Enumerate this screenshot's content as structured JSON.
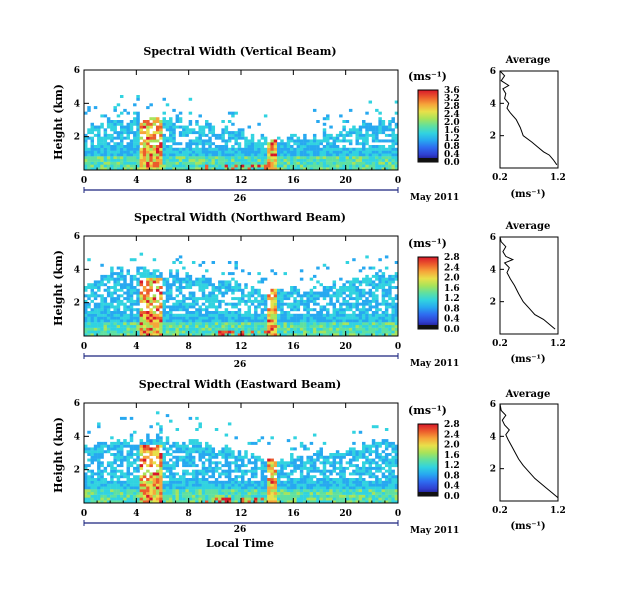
{
  "common": {
    "height_label": "Height (km)",
    "unit_label": "(ms⁻¹)",
    "profile_unit_label": "(ms⁻¹)",
    "profile_title": "Average",
    "date_label": "May 2011",
    "day_label": "26",
    "x_ticks": [
      "0",
      "4",
      "8",
      "12",
      "16",
      "20",
      "0"
    ],
    "y_ticks": [
      "6",
      "4",
      "2"
    ],
    "x_axis_label": "Local Time",
    "colors": {
      "axis": "#000000",
      "day_bar": "#1a237e",
      "colormap": [
        "#1a0a6e",
        "#2f3fd0",
        "#2e6bf0",
        "#27a8f0",
        "#31d3e0",
        "#5fe0a0",
        "#a7e35a",
        "#e8e04a",
        "#f6a53a",
        "#ec5b2c",
        "#d8182a"
      ]
    }
  },
  "chart_data": [
    {
      "type": "heatmap",
      "title": "Spectral Width (Vertical Beam)",
      "xlabel": "",
      "ylabel": "Height (km)",
      "x_range_hours": [
        0,
        24
      ],
      "ylim_km": [
        0,
        6
      ],
      "colorbar": {
        "ticks": [
          "3.6",
          "3.2",
          "2.8",
          "2.4",
          "2.0",
          "1.6",
          "1.2",
          "0.8",
          "0.4",
          "0.0"
        ],
        "min": 0.0,
        "max": 3.6
      },
      "profile": {
        "title": "Average",
        "xlabel": "(ms⁻¹)",
        "x_ticks": [
          "0.2",
          "1.2"
        ],
        "xlim": [
          0.2,
          1.2
        ],
        "y_ticks": [
          "6",
          "4",
          "2"
        ],
        "ylim_km": [
          0,
          6
        ],
        "points": [
          [
            1.18,
            0.2
          ],
          [
            1.12,
            0.5
          ],
          [
            1.05,
            0.8
          ],
          [
            0.95,
            1.0
          ],
          [
            0.85,
            1.3
          ],
          [
            0.75,
            1.6
          ],
          [
            0.6,
            2.0
          ],
          [
            0.55,
            2.5
          ],
          [
            0.48,
            3.0
          ],
          [
            0.38,
            3.4
          ],
          [
            0.32,
            3.7
          ],
          [
            0.35,
            4.0
          ],
          [
            0.28,
            4.3
          ],
          [
            0.3,
            4.6
          ],
          [
            0.25,
            4.9
          ],
          [
            0.35,
            5.1
          ],
          [
            0.22,
            5.4
          ],
          [
            0.28,
            5.7
          ],
          [
            0.2,
            6.0
          ]
        ]
      }
    },
    {
      "type": "heatmap",
      "title": "Spectral Width (Northward Beam)",
      "xlabel": "",
      "ylabel": "Height (km)",
      "x_range_hours": [
        0,
        24
      ],
      "ylim_km": [
        0,
        6
      ],
      "colorbar": {
        "ticks": [
          "2.8",
          "2.4",
          "2.0",
          "1.6",
          "1.2",
          "0.8",
          "0.4",
          "0.0"
        ],
        "min": 0.0,
        "max": 2.8
      },
      "profile": {
        "title": "Average",
        "xlabel": "(ms⁻¹)",
        "x_ticks": [
          "0.2",
          "1.2"
        ],
        "xlim": [
          0.2,
          1.2
        ],
        "y_ticks": [
          "6",
          "4",
          "2"
        ],
        "ylim_km": [
          0,
          6
        ],
        "points": [
          [
            1.15,
            0.3
          ],
          [
            1.05,
            0.6
          ],
          [
            0.95,
            0.9
          ],
          [
            0.8,
            1.2
          ],
          [
            0.7,
            1.6
          ],
          [
            0.6,
            2.0
          ],
          [
            0.52,
            2.5
          ],
          [
            0.45,
            3.0
          ],
          [
            0.38,
            3.4
          ],
          [
            0.32,
            3.8
          ],
          [
            0.36,
            4.1
          ],
          [
            0.28,
            4.4
          ],
          [
            0.42,
            4.6
          ],
          [
            0.3,
            4.8
          ],
          [
            0.25,
            5.1
          ],
          [
            0.3,
            5.4
          ],
          [
            0.22,
            5.7
          ],
          [
            0.2,
            6.0
          ]
        ]
      }
    },
    {
      "type": "heatmap",
      "title": "Spectral Width (Eastward Beam)",
      "xlabel": "Local Time",
      "ylabel": "Height (km)",
      "x_range_hours": [
        0,
        24
      ],
      "ylim_km": [
        0,
        6
      ],
      "colorbar": {
        "ticks": [
          "2.8",
          "2.4",
          "2.0",
          "1.6",
          "1.2",
          "0.8",
          "0.4",
          "0.0"
        ],
        "min": 0.0,
        "max": 2.8
      },
      "profile": {
        "title": "Average",
        "xlabel": "(ms⁻¹)",
        "x_ticks": [
          "0.2",
          "1.2"
        ],
        "xlim": [
          0.2,
          1.2
        ],
        "y_ticks": [
          "6",
          "4",
          "2"
        ],
        "ylim_km": [
          0,
          6
        ],
        "points": [
          [
            1.2,
            0.2
          ],
          [
            1.1,
            0.5
          ],
          [
            1.0,
            0.8
          ],
          [
            0.9,
            1.1
          ],
          [
            0.8,
            1.4
          ],
          [
            0.7,
            1.8
          ],
          [
            0.6,
            2.2
          ],
          [
            0.52,
            2.6
          ],
          [
            0.46,
            3.0
          ],
          [
            0.4,
            3.4
          ],
          [
            0.34,
            3.8
          ],
          [
            0.3,
            4.1
          ],
          [
            0.36,
            4.4
          ],
          [
            0.28,
            4.7
          ],
          [
            0.24,
            5.0
          ],
          [
            0.3,
            5.3
          ],
          [
            0.22,
            5.6
          ],
          [
            0.2,
            6.0
          ]
        ]
      }
    }
  ]
}
